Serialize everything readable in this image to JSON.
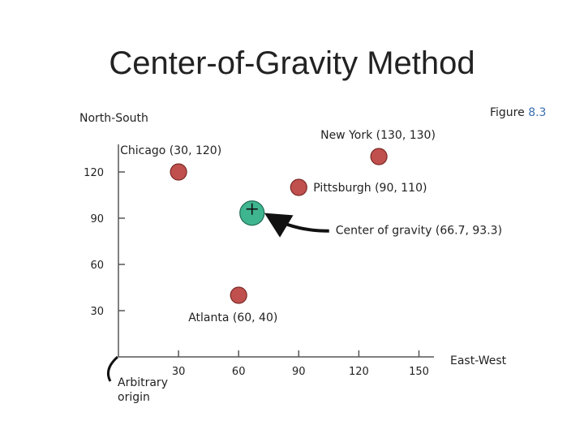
{
  "slide": {
    "title": "Center-of-Gravity Method",
    "figure_label": "Figure",
    "figure_number": "8.3"
  },
  "chart_data": {
    "type": "scatter",
    "title": "Center-of-Gravity Method",
    "xlabel": "East-West",
    "ylabel": "North-South",
    "x_ticks": [
      30,
      60,
      90,
      120,
      150
    ],
    "y_ticks": [
      30,
      60,
      90,
      120
    ],
    "origin_label": [
      "Arbitrary",
      "origin"
    ],
    "points": [
      {
        "label": "Chicago (30, 120)",
        "x": 30,
        "y": 120,
        "anchor": "above-left"
      },
      {
        "label": "New York (130, 130)",
        "x": 130,
        "y": 130,
        "anchor": "above-left"
      },
      {
        "label": "Pittsburgh (90, 110)",
        "x": 90,
        "y": 110,
        "anchor": "right"
      },
      {
        "label": "Atlanta (60, 40)",
        "x": 60,
        "y": 40,
        "anchor": "below-right"
      }
    ],
    "center_of_gravity": {
      "label": "Center of gravity (66.7, 93.3)",
      "x": 66.7,
      "y": 93.3
    },
    "colors": {
      "city": "#c0504d",
      "city_stroke": "#7a2a28",
      "center": "#3fb58f",
      "center_stroke": "#1f6d55",
      "axis": "#555555"
    }
  }
}
